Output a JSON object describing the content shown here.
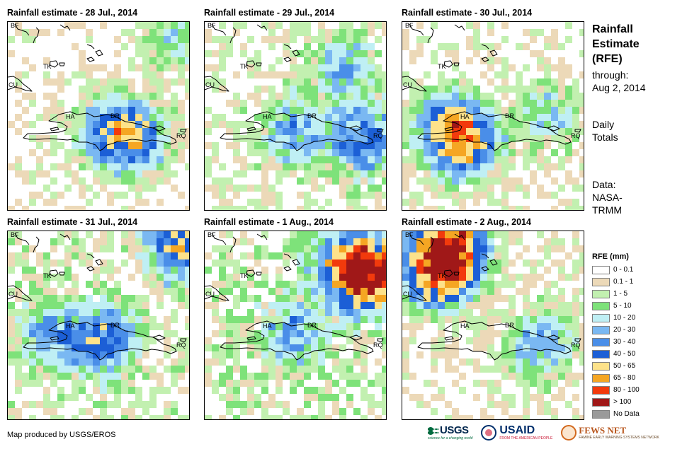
{
  "panels": [
    {
      "title": "Rainfall estimate - 28 Jul., 2014",
      "seed": 11,
      "wet": 0.1,
      "hot": [
        [
          170,
          158,
          2.6
        ],
        [
          130,
          150,
          1.2
        ],
        [
          230,
          20,
          1.0
        ]
      ]
    },
    {
      "title": "Rainfall estimate - 29 Jul., 2014",
      "seed": 23,
      "wet": 0.25,
      "hot": [
        [
          220,
          160,
          2.2
        ],
        [
          120,
          150,
          1.5
        ],
        [
          190,
          60,
          1.2
        ]
      ]
    },
    {
      "title": "Rainfall estimate - 30 Jul., 2014",
      "seed": 37,
      "wet": 0.18,
      "hot": [
        [
          80,
          165,
          3.2
        ],
        [
          60,
          140,
          1.6
        ],
        [
          200,
          130,
          1.0
        ]
      ]
    },
    {
      "title": "Rainfall estimate - 31 Jul., 2014",
      "seed": 41,
      "wet": 0.35,
      "hot": [
        [
          240,
          15,
          2.6
        ],
        [
          130,
          150,
          2.0
        ],
        [
          60,
          140,
          1.4
        ]
      ]
    },
    {
      "title": "Rainfall estimate - 1 Aug., 2014",
      "seed": 53,
      "wet": 0.45,
      "hot": [
        [
          230,
          55,
          4.6
        ],
        [
          200,
          45,
          2.2
        ],
        [
          120,
          140,
          1.4
        ]
      ]
    },
    {
      "title": "Rainfall estimate - 2 Aug., 2014",
      "seed": 67,
      "wet": 0.12,
      "hot": [
        [
          60,
          20,
          5.2
        ],
        [
          45,
          60,
          3.0
        ],
        [
          190,
          155,
          1.6
        ]
      ]
    }
  ],
  "country_labels": {
    "bf": "BF",
    "tk": "TK",
    "cu": "CU",
    "ha": "HA",
    "dr": "DR",
    "rq": "RQ"
  },
  "side": {
    "title_lines": [
      "Rainfall",
      "Estimate",
      "(RFE)"
    ],
    "through_lines": [
      "through:",
      "Aug 2, 2014"
    ],
    "totals_lines": [
      "Daily",
      "Totals"
    ],
    "data_lines": [
      "Data:",
      "NASA-",
      "TRMM"
    ]
  },
  "legend": {
    "title": "RFE (mm)",
    "items": [
      {
        "label": "0 - 0.1",
        "color": "#ffffff"
      },
      {
        "label": "0.1 - 1",
        "color": "#ecd9b8"
      },
      {
        "label": "1 - 5",
        "color": "#c2f0b0"
      },
      {
        "label": "5 - 10",
        "color": "#7ee27a"
      },
      {
        "label": "10 - 20",
        "color": "#bfeff4"
      },
      {
        "label": "20 - 30",
        "color": "#7ab8f2"
      },
      {
        "label": "30 - 40",
        "color": "#4a8ee8"
      },
      {
        "label": "40 - 50",
        "color": "#1c5fd6"
      },
      {
        "label": "50 - 65",
        "color": "#fde28a"
      },
      {
        "label": "65 - 80",
        "color": "#f5a623"
      },
      {
        "label": "80 - 100",
        "color": "#f23a0c"
      },
      {
        "label": "> 100",
        "color": "#a01818"
      },
      {
        "label": "No Data",
        "color": "#9a9a9a"
      }
    ]
  },
  "credit": "Map produced by USGS/EROS",
  "logos": {
    "usgs": "USGS",
    "usgs_tag": "science for a changing world",
    "usaid": "USAID",
    "usaid_tag": "FROM THE AMERICAN PEOPLE",
    "fews": "FEWS NET",
    "fews_tag": "FAMINE EARLY WARNING SYSTEMS NETWORK"
  }
}
